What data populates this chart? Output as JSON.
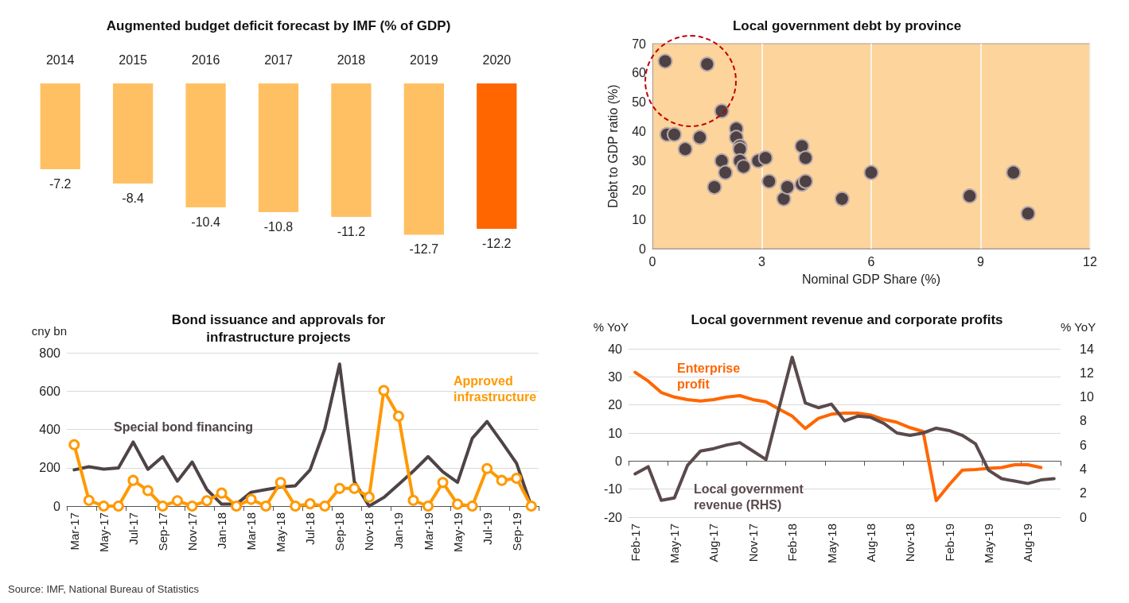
{
  "chart_data": [
    {
      "type": "bar",
      "title": "Augmented budget deficit forecast by IMF (% of GDP)",
      "categories": [
        "2014",
        "2015",
        "2016",
        "2017",
        "2018",
        "2019",
        "2020"
      ],
      "values": [
        -7.2,
        -8.4,
        -10.4,
        -10.8,
        -11.2,
        -12.7,
        -12.2
      ],
      "colors": [
        "#ffc063",
        "#ffc063",
        "#ffc063",
        "#ffc063",
        "#ffc063",
        "#ffc063",
        "#ff6600"
      ],
      "data_labels": true,
      "legend": false,
      "grid": false
    },
    {
      "type": "scatter",
      "title": "Local government debt by province",
      "xlabel": "Nominal GDP Share (%)",
      "ylabel": "Debt to GDP ratio (%)",
      "x": [
        0.35,
        1.5,
        1.9,
        0.4,
        0.6,
        1.3,
        0.9,
        2.3,
        2.3,
        2.4,
        2.4,
        2.4,
        2.5,
        1.9,
        2.0,
        1.7,
        2.9,
        3.1,
        3.2,
        3.6,
        3.7,
        4.1,
        4.2,
        4.1,
        4.2,
        5.2,
        6.0,
        8.7,
        9.9,
        10.3
      ],
      "values": [
        64,
        63,
        47,
        39,
        39,
        38,
        34,
        41,
        38,
        35,
        34,
        30,
        28,
        30,
        26,
        21,
        30,
        31,
        23,
        17,
        21,
        35,
        31,
        22,
        23,
        17,
        26,
        18,
        26,
        12
      ],
      "color": "#4d4144",
      "marker": "circle",
      "xlim": [
        0,
        12
      ],
      "xticks": [
        0,
        3,
        6,
        9,
        12
      ],
      "ylim": [
        0,
        70
      ],
      "yticks": [
        0,
        10,
        20,
        30,
        40,
        50,
        60,
        70
      ],
      "grid": "x",
      "legend": false
    },
    {
      "type": "line",
      "title": "Bond issuance and approvals for\ninfrastructure projects",
      "ylabel": "cny bn",
      "categories": [
        "Mar-17",
        null,
        "May-17",
        null,
        "Jul-17",
        null,
        "Sep-17",
        null,
        "Nov-17",
        null,
        "Jan-18",
        null,
        "Mar-18",
        null,
        "May-18",
        null,
        "Jul-18",
        null,
        "Sep-18",
        null,
        "Nov-18",
        null,
        "Jan-19",
        null,
        "Mar-19",
        null,
        "May-19",
        null,
        "Jul-19",
        null,
        "Sep-19",
        null
      ],
      "series": [
        {
          "name": "Special bond financing",
          "color": "#4e4345",
          "marker": "none",
          "values": [
            189,
            205,
            193,
            199,
            334,
            192,
            258,
            130,
            230,
            86,
            10,
            10,
            72,
            86,
            99,
            106,
            189,
            403,
            741,
            127,
            0,
            45,
            113,
            182,
            258,
            179,
            124,
            354,
            441,
            334,
            223,
            0
          ]
        },
        {
          "name": "Approved infrastructure",
          "color": "#ff9900",
          "marker": "circle",
          "values": [
            320,
            30,
            0,
            0,
            134,
            81,
            0,
            28,
            0,
            28,
            68,
            0,
            35,
            0,
            123,
            0,
            12,
            0,
            92,
            92,
            47,
            603,
            469,
            30,
            0,
            123,
            10,
            0,
            196,
            134,
            145,
            0
          ]
        }
      ],
      "ylim": [
        0,
        800
      ],
      "yticks": [
        0,
        200,
        400,
        600,
        800
      ],
      "grid": "y",
      "legend": false,
      "line_style": "solid",
      "annotations": [
        "Source: IMF, National Bureau of Statistics"
      ]
    },
    {
      "type": "line",
      "title": "Local government revenue and corporate profits",
      "ylabel": "% YoY",
      "y2label": "% YoY",
      "categories": [
        "Feb-17",
        null,
        null,
        "May-17",
        null,
        null,
        "Aug-17",
        null,
        null,
        "Nov-17",
        null,
        null,
        "Feb-18",
        null,
        null,
        "May-18",
        null,
        null,
        "Aug-18",
        null,
        null,
        "Nov-18",
        null,
        null,
        "Feb-19",
        null,
        null,
        "May-19",
        null,
        null,
        "Aug-19",
        null,
        null
      ],
      "series": [
        {
          "name": "Enterprise profit",
          "color": "#ff6600",
          "marker": "none",
          "values": [
            31.6,
            28.5,
            24.4,
            22.8,
            21.9,
            21.4,
            21.9,
            22.8,
            23.3,
            21.9,
            21.1,
            18.5,
            16,
            11.6,
            15.2,
            16.7,
            17.1,
            17.1,
            16.4,
            14.8,
            13.8,
            11.9,
            10.5,
            -14.1,
            -8.4,
            -3.2,
            -3.0,
            -2.6,
            -2.3,
            -1.3,
            -1.3,
            -2.3,
            null
          ]
        },
        {
          "name": "Local government revenue (RHS)",
          "color": "#5a4a4c",
          "marker": "none",
          "axis": "y2",
          "values": [
            3.6,
            4.2,
            1.4,
            1.6,
            4.3,
            5.5,
            5.7,
            6.0,
            6.2,
            5.5,
            4.8,
            9.1,
            13.3,
            9.5,
            9.1,
            9.4,
            8.0,
            8.4,
            8.3,
            7.8,
            7.0,
            6.8,
            7.0,
            7.4,
            7.2,
            6.8,
            6.1,
            3.9,
            3.2,
            3.0,
            2.8,
            3.1,
            3.2
          ]
        }
      ],
      "ylim": [
        -20,
        40
      ],
      "yticks": [
        -20,
        -10,
        0,
        10,
        20,
        30,
        40
      ],
      "y2lim": [
        0,
        14
      ],
      "y2ticks": [
        0,
        2,
        4,
        6,
        8,
        10,
        12,
        14
      ],
      "grid": "y",
      "legend": false,
      "line_style": "solid"
    }
  ]
}
